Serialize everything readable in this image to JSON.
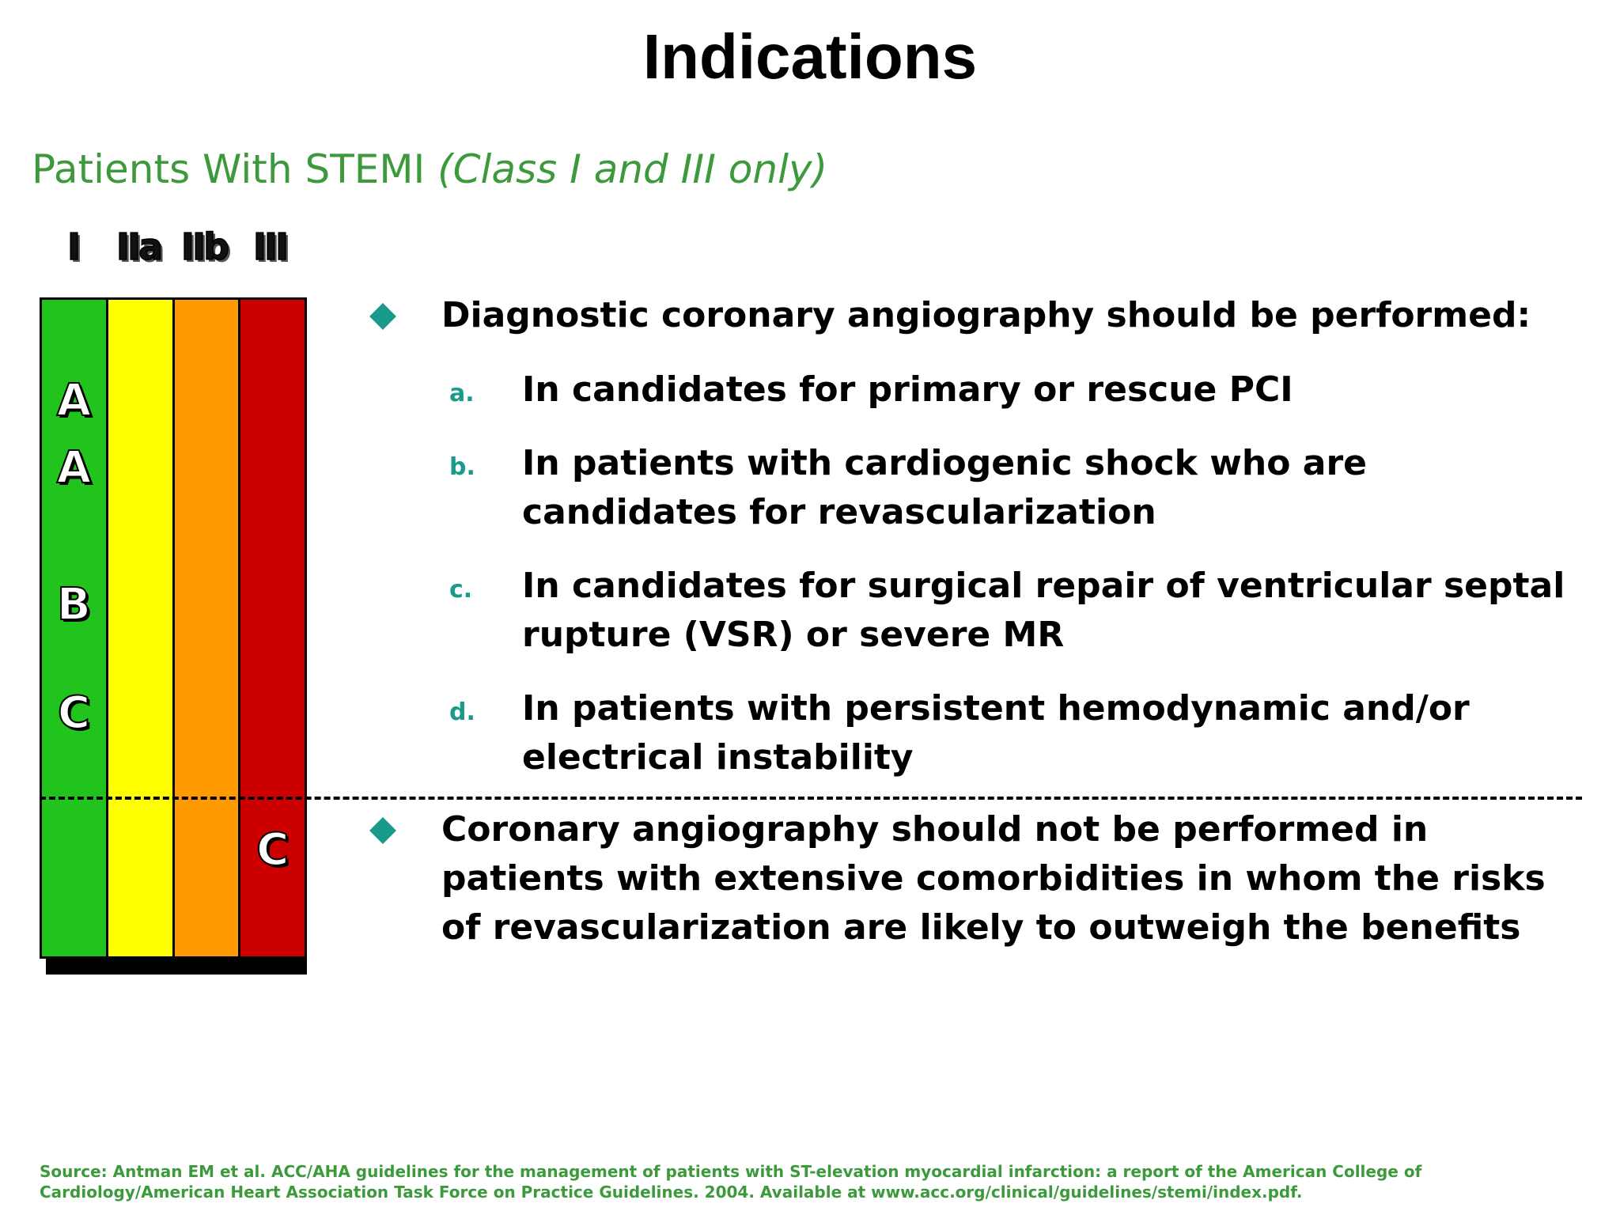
{
  "title": "Indications",
  "subtitle": {
    "main": "Patients With STEMI ",
    "italic": "(Class I and III only)"
  },
  "class_grid": {
    "column_labels": [
      "I",
      "IIa",
      "IIb",
      "III"
    ],
    "column_colors": [
      "#21c41d",
      "#ffff00",
      "#ff9a00",
      "#cc0000"
    ],
    "levels_class_I": [
      "A",
      "A",
      "B",
      "C"
    ],
    "level_class_III": "C"
  },
  "bullets": {
    "first": "Diagnostic coronary angiography should be performed:",
    "items": [
      {
        "marker": "a.",
        "text": "In candidates for primary or rescue PCI"
      },
      {
        "marker": "b.",
        "text": "In patients with cardiogenic shock who are candidates for revascularization"
      },
      {
        "marker": "c.",
        "text": "In candidates for surgical repair of ventricular septal rupture (VSR) or severe MR"
      },
      {
        "marker": "d.",
        "text": "In patients with persistent hemodynamic and/or electrical instability"
      }
    ],
    "second": "Coronary angiography should not be performed in patients with extensive comorbidities in whom the risks of revascularization are likely to outweigh the benefits"
  },
  "source": "Source: Antman EM et al. ACC/AHA guidelines for the management of patients with ST-elevation myocardial infarction: a report of the American College of Cardiology/American Heart Association Task Force on Practice Guidelines. 2004. Available at www.acc.org/clinical/guidelines/stemi/index.pdf."
}
